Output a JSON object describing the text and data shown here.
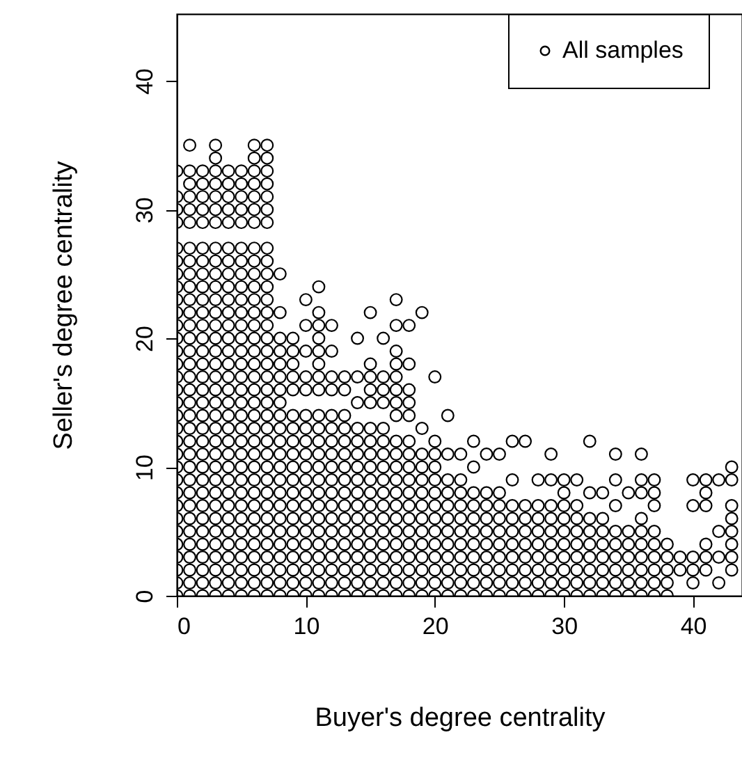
{
  "chart_data": {
    "type": "scatter",
    "xlabel": "Buyer's degree centrality",
    "ylabel": "Seller's degree centrality",
    "xlim": [
      0,
      43.8
    ],
    "ylim": [
      0,
      45.2
    ],
    "xticks": [
      0,
      10,
      20,
      30,
      40
    ],
    "yticks": [
      0,
      10,
      20,
      30,
      40
    ],
    "grid": false,
    "legend": "top right",
    "marker": "circle",
    "series": [
      {
        "name": "All samples",
        "color": "#000000",
        "x": [
          0,
          0,
          0,
          0,
          0,
          0,
          0,
          0,
          0,
          0,
          0,
          0,
          0,
          0,
          0,
          0,
          0,
          0,
          0,
          0,
          0,
          0,
          0,
          0,
          0,
          0,
          0,
          0,
          0,
          0,
          0,
          0,
          1,
          1,
          1,
          1,
          1,
          1,
          1,
          1,
          1,
          1,
          1,
          1,
          1,
          1,
          1,
          1,
          1,
          1,
          1,
          1,
          1,
          1,
          1,
          1,
          1,
          1,
          1,
          1,
          1,
          1,
          1,
          1,
          1,
          1,
          2,
          2,
          2,
          2,
          2,
          2,
          2,
          2,
          2,
          2,
          2,
          2,
          2,
          2,
          2,
          2,
          2,
          2,
          2,
          2,
          2,
          2,
          2,
          2,
          2,
          2,
          2,
          2,
          2,
          2,
          2,
          2,
          2,
          3,
          3,
          3,
          3,
          3,
          3,
          3,
          3,
          3,
          3,
          3,
          3,
          3,
          3,
          3,
          3,
          3,
          3,
          3,
          3,
          3,
          3,
          3,
          3,
          3,
          3,
          3,
          3,
          3,
          3,
          3,
          3,
          3,
          3,
          3,
          4,
          4,
          4,
          4,
          4,
          4,
          4,
          4,
          4,
          4,
          4,
          4,
          4,
          4,
          4,
          4,
          4,
          4,
          4,
          4,
          4,
          4,
          4,
          4,
          4,
          4,
          4,
          4,
          4,
          4,
          4,
          4,
          4,
          5,
          5,
          5,
          5,
          5,
          5,
          5,
          5,
          5,
          5,
          5,
          5,
          5,
          5,
          5,
          5,
          5,
          5,
          5,
          5,
          5,
          5,
          5,
          5,
          5,
          5,
          5,
          5,
          5,
          5,
          5,
          5,
          5,
          6,
          6,
          6,
          6,
          6,
          6,
          6,
          6,
          6,
          6,
          6,
          6,
          6,
          6,
          6,
          6,
          6,
          6,
          6,
          6,
          6,
          6,
          6,
          6,
          6,
          6,
          6,
          6,
          6,
          6,
          6,
          6,
          6,
          6,
          6,
          7,
          7,
          7,
          7,
          7,
          7,
          7,
          7,
          7,
          7,
          7,
          7,
          7,
          7,
          7,
          7,
          7,
          7,
          7,
          7,
          7,
          7,
          7,
          7,
          7,
          7,
          7,
          7,
          7,
          7,
          7,
          7,
          7,
          7,
          7,
          8,
          8,
          8,
          8,
          8,
          8,
          8,
          8,
          8,
          8,
          8,
          8,
          8,
          8,
          8,
          8,
          8,
          8,
          8,
          8,
          8,
          8,
          8,
          9,
          9,
          9,
          9,
          9,
          9,
          9,
          9,
          9,
          9,
          9,
          9,
          9,
          9,
          9,
          9,
          9,
          9,
          9,
          9,
          10,
          10,
          10,
          10,
          10,
          10,
          10,
          10,
          10,
          10,
          10,
          10,
          10,
          10,
          10,
          10,
          10,
          10,
          10,
          10,
          11,
          11,
          11,
          11,
          11,
          11,
          11,
          11,
          11,
          11,
          11,
          11,
          11,
          11,
          11,
          11,
          11,
          11,
          11,
          11,
          11,
          11,
          11,
          12,
          12,
          12,
          12,
          12,
          12,
          12,
          12,
          12,
          12,
          12,
          12,
          12,
          12,
          12,
          12,
          12,
          12,
          12,
          13,
          13,
          13,
          13,
          13,
          13,
          13,
          13,
          13,
          13,
          13,
          13,
          13,
          13,
          13,
          13,
          13,
          14,
          14,
          14,
          14,
          14,
          14,
          14,
          14,
          14,
          14,
          14,
          14,
          14,
          14,
          14,
          14,
          14,
          15,
          15,
          15,
          15,
          15,
          15,
          15,
          15,
          15,
          15,
          15,
          15,
          15,
          15,
          15,
          15,
          15,
          15,
          15,
          16,
          16,
          16,
          16,
          16,
          16,
          16,
          16,
          16,
          16,
          16,
          16,
          16,
          16,
          16,
          16,
          16,
          16,
          17,
          17,
          17,
          17,
          17,
          17,
          17,
          17,
          17,
          17,
          17,
          17,
          17,
          17,
          17,
          17,
          17,
          17,
          17,
          17,
          17,
          18,
          18,
          18,
          18,
          18,
          18,
          18,
          18,
          18,
          18,
          18,
          18,
          18,
          18,
          18,
          18,
          18,
          18,
          19,
          19,
          19,
          19,
          19,
          19,
          19,
          19,
          19,
          19,
          19,
          19,
          19,
          19,
          20,
          20,
          20,
          20,
          20,
          20,
          20,
          20,
          20,
          20,
          20,
          20,
          20,
          20,
          21,
          21,
          21,
          21,
          21,
          21,
          21,
          21,
          21,
          21,
          21,
          21,
          22,
          22,
          22,
          22,
          22,
          22,
          22,
          22,
          22,
          22,
          22,
          23,
          23,
          23,
          23,
          23,
          23,
          23,
          23,
          23,
          23,
          23,
          24,
          24,
          24,
          24,
          24,
          24,
          24,
          24,
          24,
          24,
          25,
          25,
          25,
          25,
          25,
          25,
          25,
          25,
          25,
          25,
          26,
          26,
          26,
          26,
          26,
          26,
          26,
          26,
          26,
          26,
          27,
          27,
          27,
          27,
          27,
          27,
          27,
          27,
          27,
          28,
          28,
          28,
          28,
          28,
          28,
          28,
          28,
          28,
          29,
          29,
          29,
          29,
          29,
          29,
          29,
          29,
          29,
          29,
          30,
          30,
          30,
          30,
          30,
          30,
          30,
          30,
          30,
          30,
          31,
          31,
          31,
          31,
          31,
          31,
          31,
          31,
          31,
          32,
          32,
          32,
          32,
          32,
          32,
          32,
          32,
          32,
          33,
          33,
          33,
          33,
          33,
          33,
          33,
          33,
          34,
          34,
          34,
          34,
          34,
          34,
          34,
          34,
          34,
          35,
          35,
          35,
          35,
          35,
          35,
          35,
          36,
          36,
          36,
          36,
          36,
          36,
          36,
          36,
          36,
          36,
          37,
          37,
          37,
          37,
          37,
          37,
          37,
          37,
          37,
          38,
          38,
          38,
          38,
          38,
          39,
          39,
          40,
          40,
          40,
          40,
          40,
          41,
          41,
          41,
          41,
          41,
          41,
          42,
          42,
          42,
          42,
          43,
          43,
          43,
          43,
          43,
          43,
          43,
          43
        ],
        "values": [
          0,
          1,
          2,
          3,
          4,
          5,
          6,
          7,
          8,
          9,
          10,
          11,
          12,
          13,
          14,
          15,
          16,
          17,
          18,
          19,
          20,
          21,
          22,
          23,
          24,
          25,
          26,
          27,
          29,
          30,
          31,
          33,
          0,
          1,
          2,
          3,
          4,
          5,
          6,
          7,
          8,
          9,
          10,
          11,
          12,
          13,
          14,
          15,
          16,
          17,
          18,
          19,
          20,
          21,
          22,
          23,
          24,
          25,
          26,
          27,
          29,
          30,
          31,
          32,
          33,
          35,
          0,
          1,
          2,
          3,
          4,
          5,
          6,
          7,
          8,
          9,
          10,
          11,
          12,
          13,
          14,
          15,
          16,
          17,
          18,
          19,
          20,
          21,
          22,
          23,
          24,
          25,
          26,
          27,
          29,
          30,
          31,
          32,
          33,
          0,
          1,
          2,
          3,
          4,
          5,
          6,
          7,
          8,
          9,
          10,
          11,
          12,
          13,
          14,
          15,
          16,
          17,
          18,
          19,
          20,
          21,
          22,
          23,
          24,
          25,
          26,
          27,
          29,
          30,
          31,
          32,
          33,
          34,
          35,
          0,
          1,
          2,
          3,
          4,
          5,
          6,
          7,
          8,
          9,
          10,
          11,
          12,
          13,
          14,
          15,
          16,
          17,
          18,
          19,
          20,
          21,
          22,
          23,
          24,
          25,
          26,
          27,
          29,
          30,
          31,
          32,
          33,
          0,
          1,
          2,
          3,
          4,
          5,
          6,
          7,
          8,
          9,
          10,
          11,
          12,
          13,
          14,
          15,
          16,
          17,
          18,
          19,
          20,
          21,
          22,
          23,
          24,
          25,
          26,
          27,
          29,
          30,
          31,
          32,
          33,
          0,
          1,
          2,
          3,
          4,
          5,
          6,
          7,
          8,
          9,
          10,
          11,
          12,
          13,
          14,
          15,
          16,
          17,
          18,
          19,
          20,
          21,
          22,
          23,
          24,
          25,
          26,
          27,
          29,
          30,
          31,
          32,
          33,
          34,
          35,
          0,
          1,
          2,
          3,
          4,
          5,
          6,
          7,
          8,
          9,
          10,
          11,
          12,
          13,
          14,
          15,
          16,
          17,
          18,
          19,
          20,
          21,
          22,
          23,
          24,
          25,
          26,
          27,
          29,
          30,
          31,
          32,
          33,
          34,
          35,
          0,
          1,
          2,
          3,
          4,
          5,
          6,
          7,
          8,
          9,
          10,
          11,
          12,
          13,
          14,
          15,
          16,
          17,
          18,
          19,
          20,
          22,
          25,
          0,
          1,
          2,
          3,
          4,
          5,
          6,
          7,
          8,
          9,
          10,
          11,
          12,
          13,
          14,
          16,
          17,
          18,
          19,
          20,
          0,
          1,
          2,
          3,
          4,
          5,
          6,
          7,
          8,
          9,
          10,
          11,
          12,
          13,
          14,
          16,
          17,
          19,
          21,
          23,
          0,
          1,
          2,
          3,
          4,
          5,
          6,
          7,
          8,
          9,
          10,
          11,
          12,
          13,
          14,
          16,
          17,
          18,
          19,
          20,
          21,
          22,
          24,
          0,
          1,
          2,
          3,
          4,
          5,
          6,
          7,
          8,
          9,
          10,
          11,
          12,
          13,
          14,
          16,
          17,
          19,
          21,
          0,
          1,
          2,
          3,
          4,
          5,
          6,
          7,
          8,
          9,
          10,
          11,
          12,
          13,
          14,
          16,
          17,
          0,
          1,
          2,
          3,
          4,
          5,
          6,
          7,
          8,
          9,
          10,
          11,
          12,
          13,
          15,
          17,
          20,
          0,
          1,
          2,
          3,
          4,
          5,
          6,
          7,
          8,
          9,
          10,
          11,
          12,
          13,
          15,
          16,
          17,
          18,
          22,
          0,
          1,
          2,
          3,
          4,
          5,
          6,
          7,
          8,
          9,
          10,
          11,
          12,
          13,
          15,
          16,
          17,
          20,
          0,
          1,
          2,
          3,
          4,
          5,
          6,
          7,
          8,
          9,
          10,
          11,
          12,
          14,
          15,
          16,
          17,
          18,
          19,
          21,
          23,
          0,
          1,
          2,
          3,
          4,
          5,
          6,
          7,
          8,
          9,
          10,
          11,
          12,
          14,
          15,
          16,
          18,
          21,
          0,
          1,
          2,
          3,
          4,
          5,
          6,
          7,
          8,
          9,
          10,
          11,
          13,
          22,
          0,
          1,
          2,
          3,
          4,
          5,
          6,
          7,
          8,
          9,
          10,
          11,
          12,
          17,
          0,
          1,
          2,
          3,
          4,
          5,
          6,
          7,
          8,
          9,
          11,
          14,
          0,
          1,
          2,
          3,
          4,
          5,
          6,
          7,
          8,
          9,
          11,
          0,
          1,
          2,
          3,
          4,
          5,
          6,
          7,
          8,
          10,
          12,
          0,
          1,
          2,
          3,
          4,
          5,
          6,
          7,
          8,
          11,
          0,
          1,
          2,
          3,
          4,
          5,
          6,
          7,
          8,
          11,
          0,
          1,
          2,
          3,
          4,
          5,
          6,
          7,
          9,
          12,
          0,
          1,
          2,
          3,
          4,
          5,
          6,
          7,
          12,
          0,
          1,
          2,
          3,
          4,
          5,
          6,
          7,
          9,
          0,
          1,
          2,
          3,
          4,
          5,
          6,
          7,
          9,
          11,
          0,
          1,
          2,
          3,
          4,
          5,
          6,
          7,
          8,
          9,
          0,
          1,
          2,
          3,
          4,
          5,
          6,
          7,
          9,
          0,
          1,
          2,
          3,
          4,
          5,
          6,
          8,
          12,
          0,
          1,
          2,
          3,
          4,
          5,
          6,
          8,
          0,
          1,
          2,
          3,
          4,
          5,
          7,
          9,
          11,
          0,
          1,
          2,
          3,
          4,
          5,
          8,
          0,
          1,
          2,
          3,
          4,
          5,
          6,
          8,
          9,
          11,
          0,
          1,
          2,
          3,
          4,
          5,
          7,
          8,
          9,
          0,
          1,
          2,
          3,
          4,
          2,
          3,
          1,
          2,
          3,
          7,
          9,
          2,
          3,
          4,
          7,
          8,
          9,
          1,
          3,
          5,
          9,
          2,
          3,
          4,
          5,
          6,
          7,
          9,
          10
        ]
      }
    ]
  }
}
